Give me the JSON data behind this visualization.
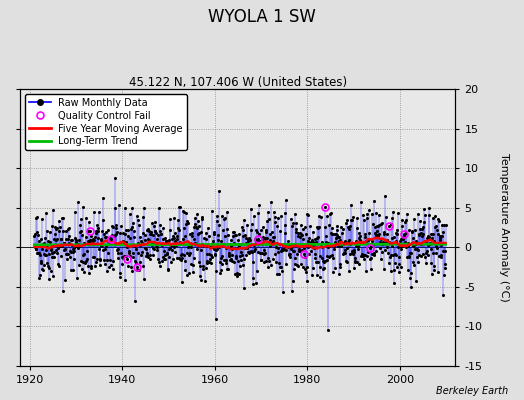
{
  "title": "WYOLA 1 SW",
  "subtitle": "45.122 N, 107.406 W (United States)",
  "xlabel_years": [
    1920,
    1940,
    1960,
    1980,
    2000
  ],
  "ylim": [
    -15,
    20
  ],
  "yticks": [
    -15,
    -10,
    -5,
    0,
    5,
    10,
    15,
    20
  ],
  "xlim": [
    1918,
    2012
  ],
  "ylabel": "Temperature Anomaly (°C)",
  "watermark": "Berkeley Earth",
  "bg_color": "#e0e0e0",
  "plot_bg": "#e8e8e8",
  "raw_line_color": "#0000ff",
  "raw_marker_color": "#000000",
  "qc_marker_color": "#ff00ff",
  "moving_avg_color": "#ff0000",
  "trend_color": "#00bb00",
  "seed": 42,
  "start_year": 1921,
  "end_year": 2009,
  "qc_indices": [
    145,
    200,
    240,
    265,
    580,
    700,
    755,
    870,
    920,
    960
  ]
}
